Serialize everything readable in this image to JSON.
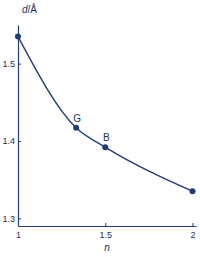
{
  "chart_data": {
    "type": "line",
    "x_label": "n",
    "y_label": "d/Å",
    "x": [
      1,
      1.333,
      1.5,
      2
    ],
    "values": [
      1.535,
      1.417,
      1.392,
      1.335
    ],
    "point_labels": [
      null,
      "G",
      "B",
      null
    ],
    "color": "#1f3d7a",
    "marker": "circle",
    "xlim": [
      1,
      2.02
    ],
    "xticks": [
      1,
      1.5,
      2
    ],
    "ylim": [
      1.29,
      1.55
    ],
    "yticks": [
      1.3,
      1.4,
      1.5
    ],
    "grid": false
  }
}
